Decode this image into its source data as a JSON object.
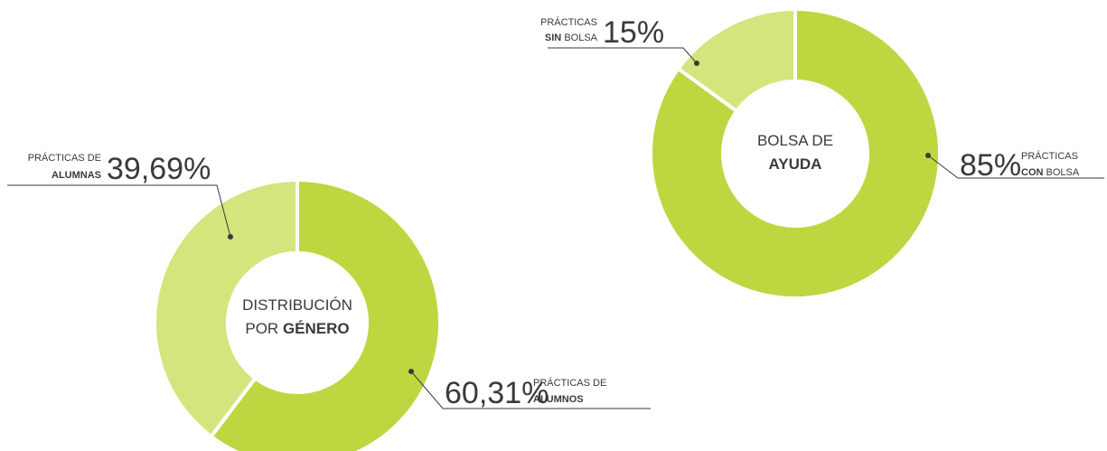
{
  "chart_data": [
    {
      "type": "donut",
      "center_lines": [
        [
          {
            "text": "DISTRIBUCIÓN"
          }
        ],
        [
          {
            "text": "POR"
          },
          {
            "text": "GÉNERO",
            "bold": true
          }
        ]
      ],
      "categories": [
        [
          [
            {
              "text": "PRÁCTICAS DE"
            }
          ],
          [
            {
              "text": "ALUMNOS",
              "bold": true
            }
          ]
        ],
        [
          [
            {
              "text": "PRÁCTICAS DE"
            }
          ],
          [
            {
              "text": "ALUMNAS",
              "bold": true
            }
          ]
        ]
      ],
      "values": [
        60.31,
        39.69
      ],
      "value_labels": [
        "60,31%",
        "39,69%"
      ],
      "colors": [
        "#bfd641",
        "#d5e47c"
      ]
    },
    {
      "type": "donut",
      "center_lines": [
        [
          {
            "text": "BOLSA DE"
          }
        ],
        [
          {
            "text": "AYUDA",
            "bold": true
          }
        ]
      ],
      "categories": [
        [
          [
            {
              "text": "PRÁCTICAS"
            }
          ],
          [
            {
              "text": "CON",
              "bold": true
            },
            {
              "text": "BOLSA"
            }
          ]
        ],
        [
          [
            {
              "text": "PRÁCTICAS"
            }
          ],
          [
            {
              "text": "SIN",
              "bold": true
            },
            {
              "text": "BOLSA"
            }
          ]
        ]
      ],
      "values": [
        85,
        15
      ],
      "value_labels": [
        "85%",
        "15%"
      ],
      "colors": [
        "#bfd641",
        "#d5e47c"
      ]
    }
  ]
}
